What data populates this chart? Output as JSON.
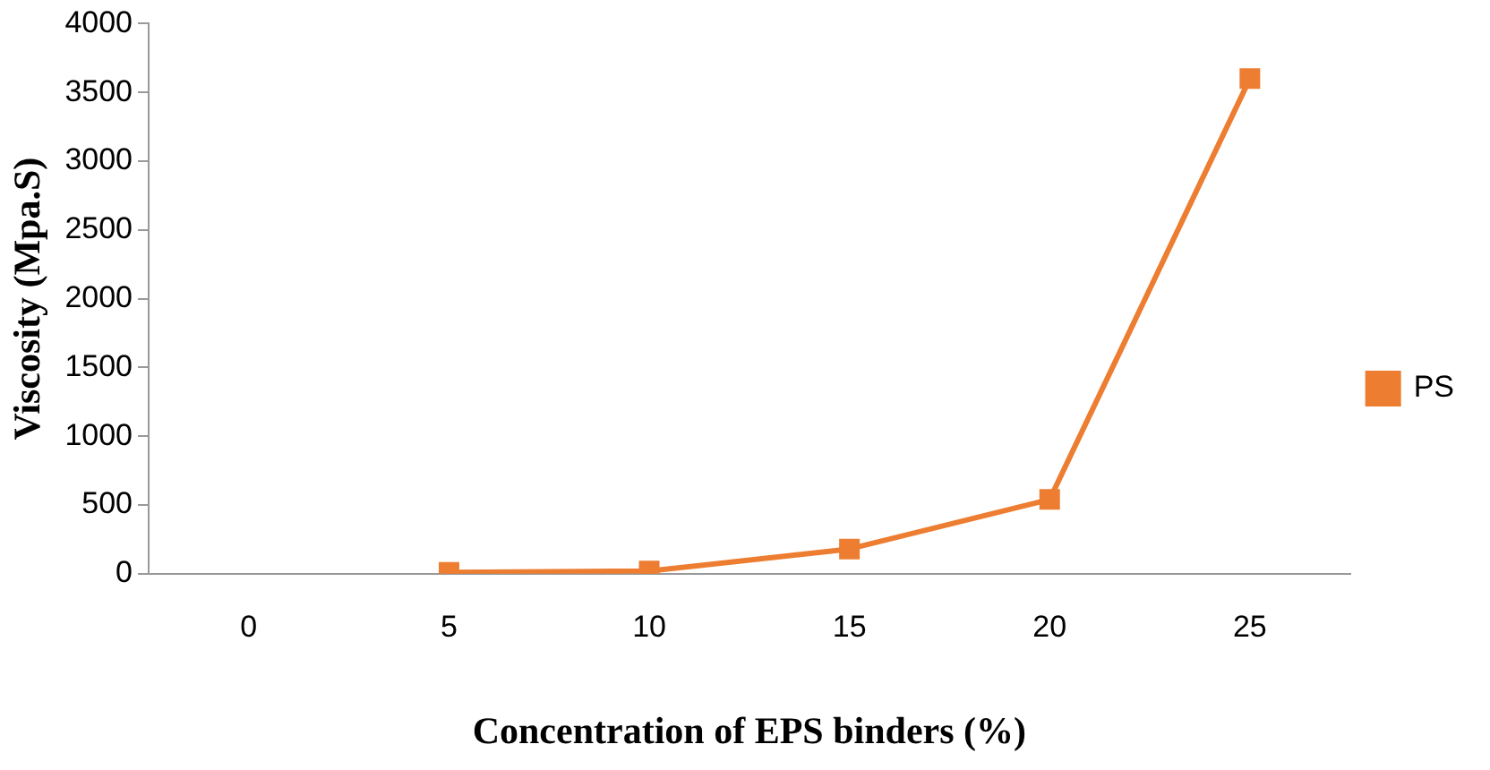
{
  "chart_data": {
    "type": "line",
    "xlabel": "Concentration of EPS binders (%)",
    "ylabel": "Viscosity (Mpa.S)",
    "categories": [
      "0",
      "5",
      "10",
      "15",
      "20",
      "25"
    ],
    "series": [
      {
        "name": "PS",
        "color": "#ed7d31",
        "values": [
          null,
          10,
          20,
          180,
          540,
          3600
        ]
      }
    ],
    "ylim": [
      0,
      4000
    ],
    "yticks": [
      0,
      500,
      1000,
      1500,
      2000,
      2500,
      3000,
      3500,
      4000
    ],
    "grid": false,
    "legend": "right",
    "marker": "square",
    "line_style": "solid"
  }
}
